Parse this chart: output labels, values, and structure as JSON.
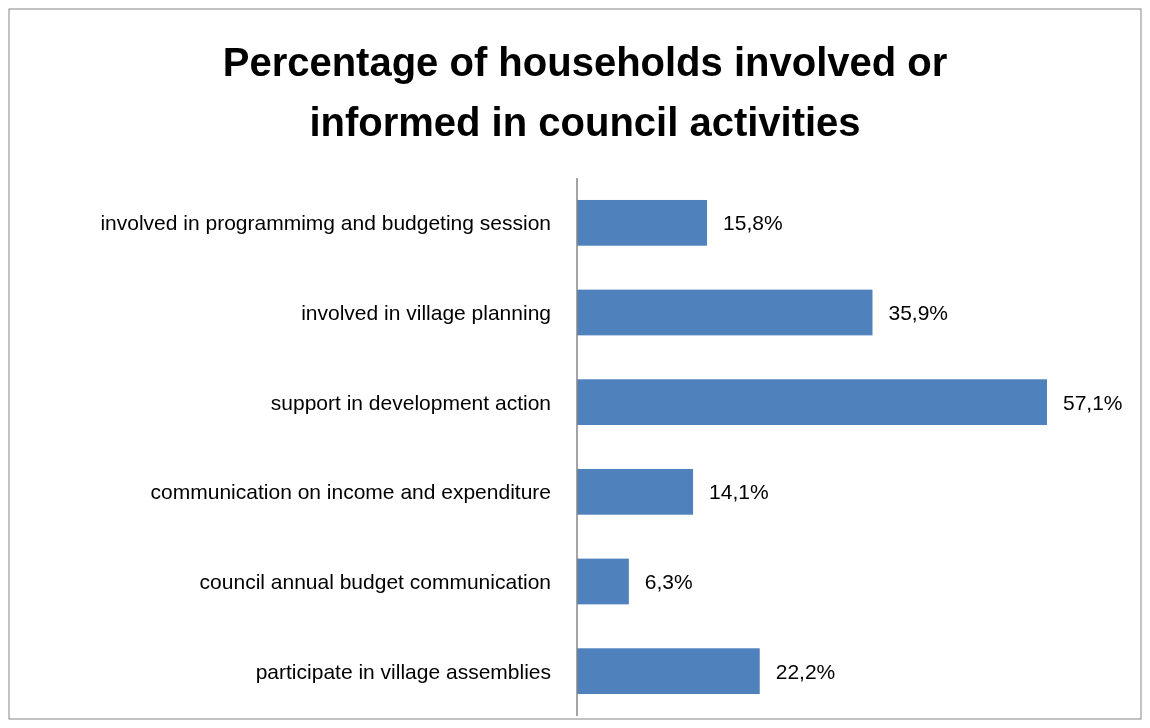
{
  "chart_data": {
    "type": "bar",
    "orientation": "horizontal",
    "title": "Percentage of households involved or informed in council activities",
    "categories": [
      "involved in programmimg and budgeting session",
      "involved in village planning",
      "support in development action",
      "communication on income and expenditure",
      "council annual budget communication",
      "participate in village assemblies"
    ],
    "values": [
      15.8,
      35.9,
      57.1,
      14.1,
      6.3,
      22.2
    ],
    "value_labels": [
      "15,8%",
      "35,9%",
      "57,1%",
      "14,1%",
      "6,3%",
      "22,2%"
    ],
    "color": "#4f81bd"
  }
}
